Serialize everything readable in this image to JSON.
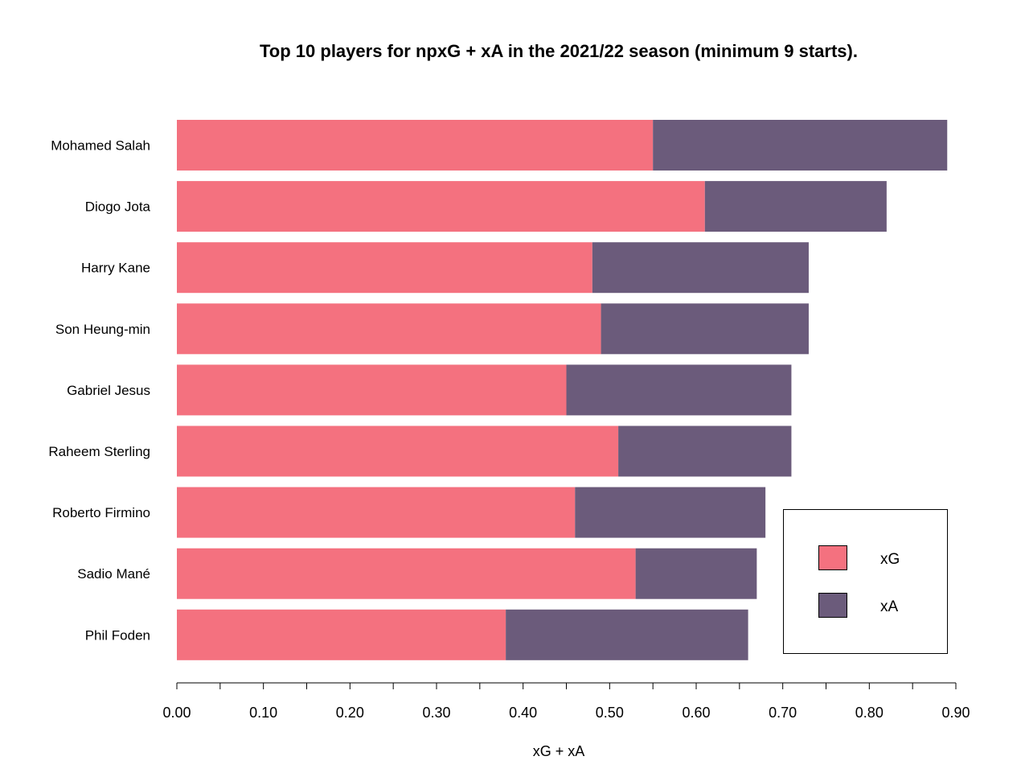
{
  "chart_data": {
    "type": "bar",
    "orientation": "horizontal",
    "stacked": true,
    "title": "Top 10 players for npxG + xA in the 2021/22 season (minimum 9 starts).",
    "xlabel": "xG + xA",
    "ylabel": "",
    "xlim": [
      0,
      0.9
    ],
    "x_ticks": [
      "0.00",
      "0.10",
      "0.20",
      "0.30",
      "0.40",
      "0.50",
      "0.60",
      "0.70",
      "0.80",
      "0.90"
    ],
    "categories": [
      "Mohamed Salah",
      "Diogo Jota",
      "Harry Kane",
      "Son Heung-min",
      "Gabriel Jesus",
      "Raheem Sterling",
      "Roberto Firmino",
      "Sadio Mané",
      "Phil Foden"
    ],
    "series": [
      {
        "name": "xG",
        "color": "#F4717F",
        "values": [
          0.55,
          0.61,
          0.48,
          0.49,
          0.45,
          0.51,
          0.46,
          0.53,
          0.38
        ]
      },
      {
        "name": "xA",
        "color": "#6B5B7B",
        "values": [
          0.34,
          0.21,
          0.25,
          0.24,
          0.26,
          0.2,
          0.22,
          0.14,
          0.28
        ]
      }
    ],
    "grid": false,
    "legend_position": "bottom-right"
  }
}
